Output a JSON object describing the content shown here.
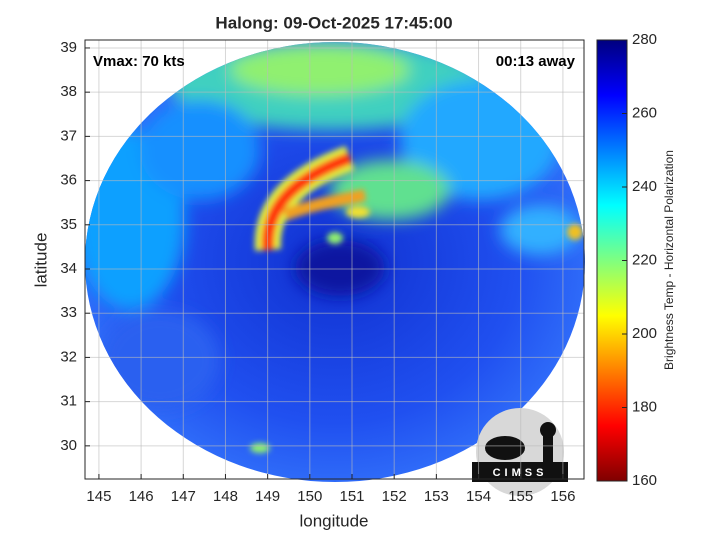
{
  "chart_data": {
    "type": "image",
    "title": "Halong: 09-Oct-2025 17:45:00",
    "xlabel": "longitude",
    "ylabel": "latitude",
    "xlim": [
      144.67,
      156.5
    ],
    "ylim": [
      29.25,
      39.18
    ],
    "xticks": [
      145,
      146,
      147,
      148,
      149,
      150,
      151,
      152,
      153,
      154,
      155,
      156
    ],
    "yticks": [
      30,
      31,
      32,
      33,
      34,
      35,
      36,
      37,
      38,
      39
    ],
    "grid": true,
    "annotations": [
      "Vmax: 70 kts",
      "00:13 away"
    ],
    "logo": "CIMSS",
    "colorbar": {
      "label": "Brightness Temp - Horizontal Polarization",
      "lim": [
        160,
        280
      ],
      "ticks": [
        160,
        180,
        200,
        220,
        240,
        260,
        280
      ],
      "colormap": "jet"
    }
  }
}
